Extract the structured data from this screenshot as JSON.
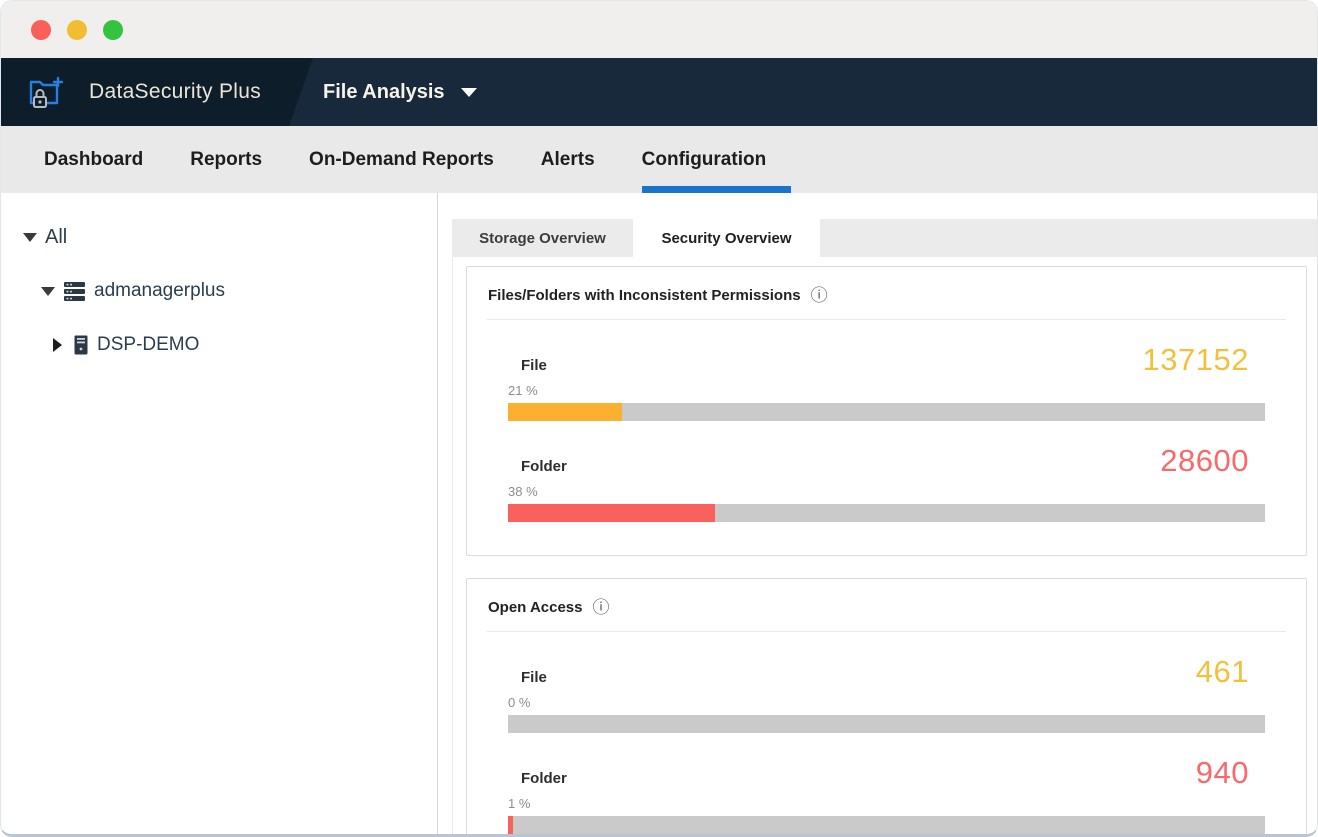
{
  "window": {
    "traffic_lights": [
      "close",
      "minimize",
      "zoom"
    ]
  },
  "header": {
    "product_name": "DataSecurity Plus",
    "module_name": "File Analysis",
    "logo_icon": "folder-plus-lock-icon"
  },
  "navbar": {
    "items": [
      {
        "label": "Dashboard",
        "active": false
      },
      {
        "label": "Reports",
        "active": false
      },
      {
        "label": "On-Demand Reports",
        "active": false
      },
      {
        "label": "Alerts",
        "active": false
      },
      {
        "label": "Configuration",
        "active": true
      }
    ],
    "active_underline_color": "#1b74cc"
  },
  "sidebar": {
    "tree": [
      {
        "label": "All",
        "state": "expanded",
        "icon": null
      },
      {
        "label": "admanagerplus",
        "state": "expanded",
        "icon": "server-stack-icon"
      },
      {
        "label": "DSP-DEMO",
        "state": "collapsed",
        "icon": "server-tower-icon"
      }
    ]
  },
  "main": {
    "tabs": [
      {
        "label": "Storage Overview",
        "active": false
      },
      {
        "label": "Security Overview",
        "active": true
      }
    ],
    "panels": [
      {
        "title": "Files/Folders with Inconsistent Permissions",
        "info_icon": "info-circle-icon",
        "rows": [
          {
            "label": "File",
            "value": "137152",
            "percent_label": "21 %",
            "fill_pct": 15.1,
            "bar_color": "#fbb12f",
            "value_color": "#f2c03c"
          },
          {
            "label": "Folder",
            "value": "28600",
            "percent_label": "38 %",
            "fill_pct": 27.4,
            "bar_color": "#fa615c",
            "value_color": "#f8696b"
          }
        ]
      },
      {
        "title": "Open Access",
        "info_icon": "info-circle-icon",
        "rows": [
          {
            "label": "File",
            "value": "461",
            "percent_label": "0 %",
            "fill_pct": 0,
            "bar_color": "#fbb12f",
            "value_color": "#f2c03c"
          },
          {
            "label": "Folder",
            "value": "940",
            "percent_label": "1 %",
            "fill_pct": 0.7,
            "bar_color": "#fa615c",
            "value_color": "#f8696b"
          }
        ]
      }
    ],
    "bar_track_color": "#cacaca"
  }
}
